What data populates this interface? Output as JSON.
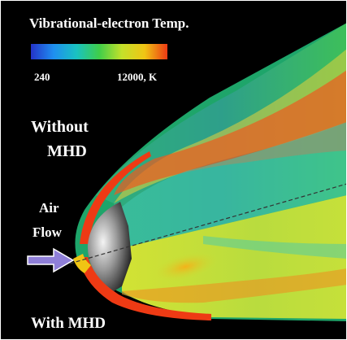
{
  "legend": {
    "title": "Vibrational-electron Temp.",
    "min_label": "240",
    "max_label": "12000, K",
    "colors": [
      "#2433c9",
      "#1f8ff0",
      "#19c2c2",
      "#3fce4a",
      "#c4e12a",
      "#f0c514",
      "#ee3a14"
    ]
  },
  "regions": {
    "upper_label_line1": "Without",
    "upper_label_line2": "MHD",
    "lower_label": "With MHD"
  },
  "flow": {
    "label_line1": "Air",
    "label_line2": "Flow"
  },
  "colors": {
    "background": "#000000",
    "arrow": "#8f7fd8",
    "shock_layer": "#ee3a14",
    "wake": "#2fa877"
  }
}
